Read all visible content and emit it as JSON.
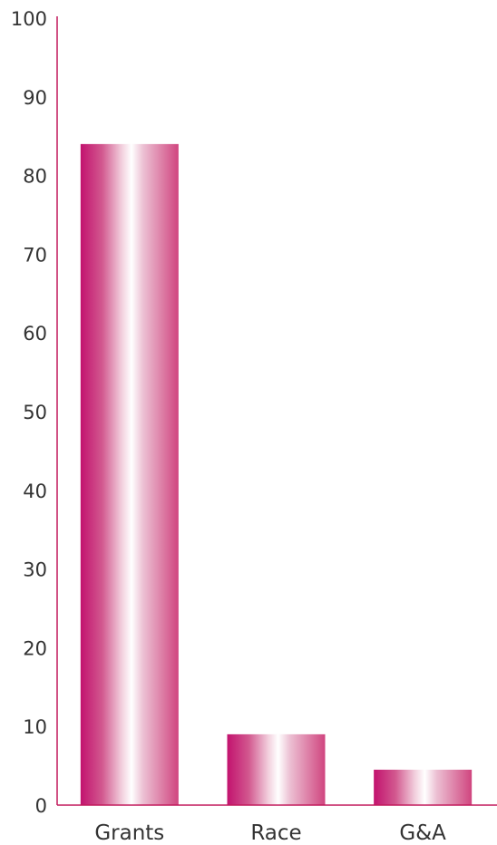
{
  "chart_data": {
    "type": "bar",
    "categories": [
      "Grants",
      "Race",
      "G&A"
    ],
    "values": [
      84,
      9,
      4.5
    ],
    "ylim": [
      0,
      100
    ],
    "yticks": [
      0,
      10,
      20,
      30,
      40,
      50,
      60,
      70,
      80,
      90,
      100
    ],
    "grid": false,
    "legend": "none"
  },
  "colors": {
    "axis": "#c2185b",
    "bar_dark": "#c2126e",
    "bar_mid": "#e59cbc",
    "bar_light": "#ffffff",
    "text": "#333333"
  }
}
